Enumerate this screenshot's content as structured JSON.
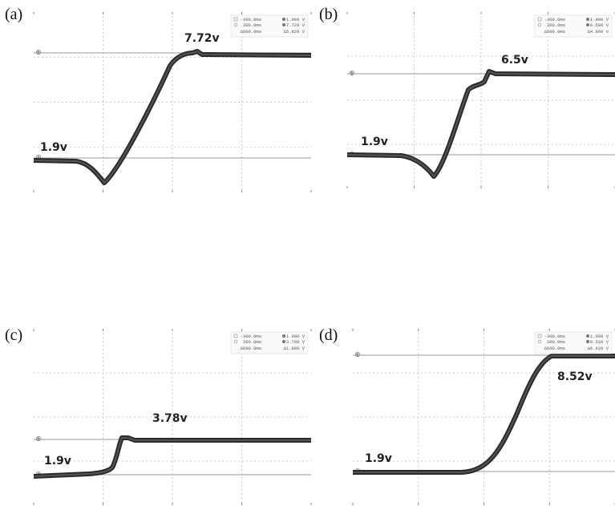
{
  "panels": [
    {
      "label": "(a)",
      "low": "1.9v",
      "high": "7.72v",
      "cursor_marks": [
        "b",
        "a"
      ],
      "readout": [
        "-300.0ms",
        "1.900 V",
        "300.0ms",
        "7.720 V",
        "Δ600.0ms",
        "Δ5.820 V"
      ]
    },
    {
      "label": "(b)",
      "low": "1.9v",
      "high": "6.5v",
      "cursor_marks": [
        "b",
        "a"
      ],
      "readout": [
        "-300.0ms",
        "1.900 V",
        "300.0ms",
        "6.500 V",
        "Δ600.0ms",
        "Δ4.600 V"
      ]
    },
    {
      "label": "(c)",
      "low": "1.9v",
      "high": "3.78v",
      "cursor_marks": [
        "b",
        "a"
      ],
      "readout": [
        "-300.0ms",
        "1.900 V",
        "300.0ms",
        "3.780 V",
        "Δ600.0ms",
        "Δ1.880 V"
      ]
    },
    {
      "label": "(d)",
      "low": "1.9v",
      "high": "8.52v",
      "cursor_marks": [
        "b",
        "a"
      ],
      "readout": [
        "-300.0ms",
        "1.900 V",
        "300.0ms",
        "8.520 V",
        "Δ600.0ms",
        "Δ6.620 V"
      ]
    }
  ]
}
